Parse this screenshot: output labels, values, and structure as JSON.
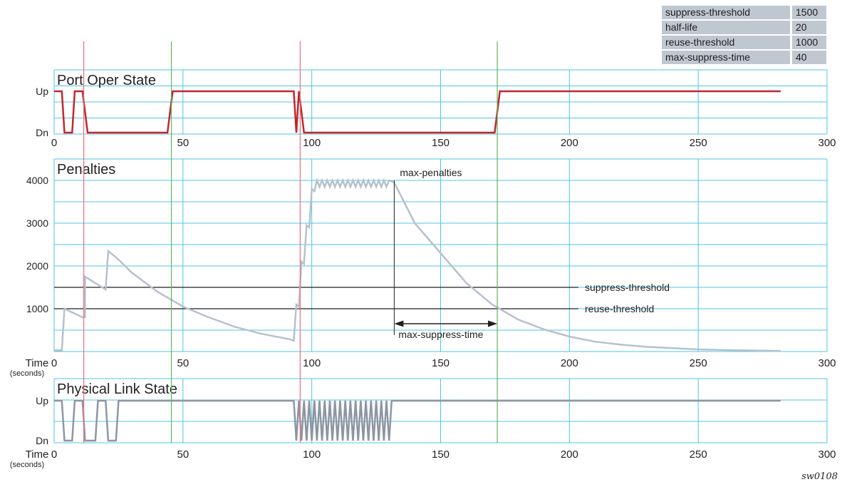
{
  "parameters": [
    {
      "key": "suppress-threshold",
      "value": "1500"
    },
    {
      "key": "half-life",
      "value": "20"
    },
    {
      "key": "reuse-threshold",
      "value": "1000"
    },
    {
      "key": "max-suppress-time",
      "value": "40"
    }
  ],
  "figure_id": "sw0108",
  "colors": {
    "grid": "#4cc7e6",
    "port_state_line": "#c1272d",
    "penalty_line": "#b7c1cd",
    "link_state_line": "#8d96a3",
    "event_red": "#e8707a",
    "event_green": "#5cb85c",
    "threshold_line": "#231f20"
  },
  "chart_data": [
    {
      "type": "line",
      "title": "Port Oper State",
      "xlim": [
        0,
        300
      ],
      "x_ticks": [
        0,
        50,
        100,
        150,
        200,
        250,
        300
      ],
      "y_ticks": [
        "Up",
        "Dn"
      ],
      "ylim": [
        0,
        1
      ],
      "series": [
        {
          "points": [
            [
              0,
              1
            ],
            [
              3,
              1
            ],
            [
              4,
              0
            ],
            [
              7,
              0
            ],
            [
              8,
              1
            ],
            [
              11,
              1
            ],
            [
              13,
              0
            ],
            [
              44,
              0
            ],
            [
              46,
              1
            ],
            [
              93,
              1
            ],
            [
              94,
              0
            ],
            [
              95,
              1
            ],
            [
              97,
              0
            ],
            [
              171,
              0
            ],
            [
              173,
              1
            ],
            [
              282,
              1
            ]
          ]
        }
      ]
    },
    {
      "type": "line",
      "title": "Penalties",
      "xlabel": "Time",
      "xlabel_unit": "(seconds)",
      "xlim": [
        0,
        300
      ],
      "ylim": [
        0,
        4000
      ],
      "x_ticks": [
        0,
        50,
        100,
        150,
        200,
        250,
        300
      ],
      "y_ticks": [
        1000,
        2000,
        3000,
        4000
      ],
      "series": [
        {
          "points": [
            [
              0,
              30
            ],
            [
              3,
              30
            ],
            [
              4,
              1000
            ],
            [
              11,
              800
            ],
            [
              12,
              800
            ],
            [
              12,
              1750
            ],
            [
              20,
              1450
            ],
            [
              20,
              1450
            ],
            [
              21,
              2350
            ],
            [
              25,
              2150
            ],
            [
              30,
              1850
            ],
            [
              40,
              1400
            ],
            [
              50,
              1050
            ],
            [
              60,
              800
            ],
            [
              70,
              580
            ],
            [
              80,
              420
            ],
            [
              92,
              280
            ],
            [
              93,
              250
            ],
            [
              94,
              1100
            ],
            [
              95,
              1050
            ],
            [
              96,
              2100
            ],
            [
              97,
              2050
            ],
            [
              98,
              2950
            ],
            [
              99,
              2900
            ],
            [
              100,
              3800
            ],
            [
              101,
              3750
            ],
            [
              102,
              4000
            ],
            [
              103,
              3850
            ],
            [
              104,
              4000
            ],
            [
              105,
              3850
            ],
            [
              106,
              4000
            ],
            [
              107,
              3850
            ],
            [
              108,
              4000
            ],
            [
              109,
              3850
            ],
            [
              110,
              4000
            ],
            [
              111,
              3850
            ],
            [
              112,
              4000
            ],
            [
              113,
              3850
            ],
            [
              114,
              4000
            ],
            [
              115,
              3850
            ],
            [
              116,
              4000
            ],
            [
              117,
              3850
            ],
            [
              118,
              4000
            ],
            [
              119,
              3850
            ],
            [
              120,
              4000
            ],
            [
              121,
              3850
            ],
            [
              122,
              4000
            ],
            [
              123,
              3850
            ],
            [
              124,
              4000
            ],
            [
              125,
              3850
            ],
            [
              126,
              4000
            ],
            [
              127,
              3850
            ],
            [
              128,
              4000
            ],
            [
              129,
              3850
            ],
            [
              130,
              4000
            ],
            [
              132,
              3950
            ],
            [
              140,
              3000
            ],
            [
              150,
              2300
            ],
            [
              160,
              1600
            ],
            [
              170,
              1100
            ],
            [
              180,
              750
            ],
            [
              190,
              520
            ],
            [
              200,
              350
            ],
            [
              210,
              230
            ],
            [
              220,
              160
            ],
            [
              230,
              110
            ],
            [
              240,
              80
            ],
            [
              250,
              50
            ],
            [
              260,
              35
            ],
            [
              270,
              25
            ],
            [
              282,
              15
            ]
          ]
        }
      ],
      "thresholds": [
        {
          "label": "suppress-threshold",
          "y": 1500
        },
        {
          "label": "reuse-threshold",
          "y": 1000
        }
      ],
      "annotations": [
        {
          "text": "max-penalties",
          "x": 132,
          "y": 4000
        },
        {
          "text": "max-suppress-time",
          "x_from": 132,
          "x_to": 172,
          "y": 650
        }
      ]
    },
    {
      "type": "line",
      "title": "Physical Link State",
      "xlabel": "Time",
      "xlabel_unit": "(seconds)",
      "xlim": [
        0,
        300
      ],
      "x_ticks": [
        0,
        50,
        100,
        150,
        200,
        250,
        300
      ],
      "y_ticks": [
        "Up",
        "Dn"
      ],
      "ylim": [
        0,
        1
      ],
      "series": [
        {
          "points": [
            [
              0,
              1
            ],
            [
              3,
              1
            ],
            [
              4,
              0
            ],
            [
              7,
              0
            ],
            [
              8,
              1
            ],
            [
              11,
              1
            ],
            [
              12,
              0
            ],
            [
              16,
              0
            ],
            [
              17,
              1
            ],
            [
              20,
              1
            ],
            [
              21,
              0
            ],
            [
              24,
              0
            ],
            [
              25,
              1
            ],
            [
              93,
              1
            ],
            [
              94,
              0
            ],
            [
              95,
              1
            ],
            [
              96,
              0
            ],
            [
              97,
              1
            ],
            [
              98,
              0
            ],
            [
              99,
              1
            ],
            [
              100,
              0
            ],
            [
              101,
              1
            ],
            [
              102,
              0
            ],
            [
              103,
              1
            ],
            [
              104,
              0
            ],
            [
              105,
              1
            ],
            [
              106,
              0
            ],
            [
              107,
              1
            ],
            [
              108,
              0
            ],
            [
              109,
              1
            ],
            [
              110,
              0
            ],
            [
              111,
              1
            ],
            [
              112,
              0
            ],
            [
              113,
              1
            ],
            [
              114,
              0
            ],
            [
              115,
              1
            ],
            [
              116,
              0
            ],
            [
              117,
              1
            ],
            [
              118,
              0
            ],
            [
              119,
              1
            ],
            [
              120,
              0
            ],
            [
              121,
              1
            ],
            [
              122,
              0
            ],
            [
              123,
              1
            ],
            [
              124,
              0
            ],
            [
              125,
              1
            ],
            [
              126,
              0
            ],
            [
              127,
              1
            ],
            [
              128,
              0
            ],
            [
              129,
              1
            ],
            [
              130,
              0
            ],
            [
              131,
              1
            ],
            [
              132,
              1
            ],
            [
              282,
              1
            ]
          ]
        }
      ]
    }
  ],
  "event_markers": {
    "red_times": [
      11.5,
      95.5
    ],
    "green_times": [
      45.5,
      172
    ]
  }
}
